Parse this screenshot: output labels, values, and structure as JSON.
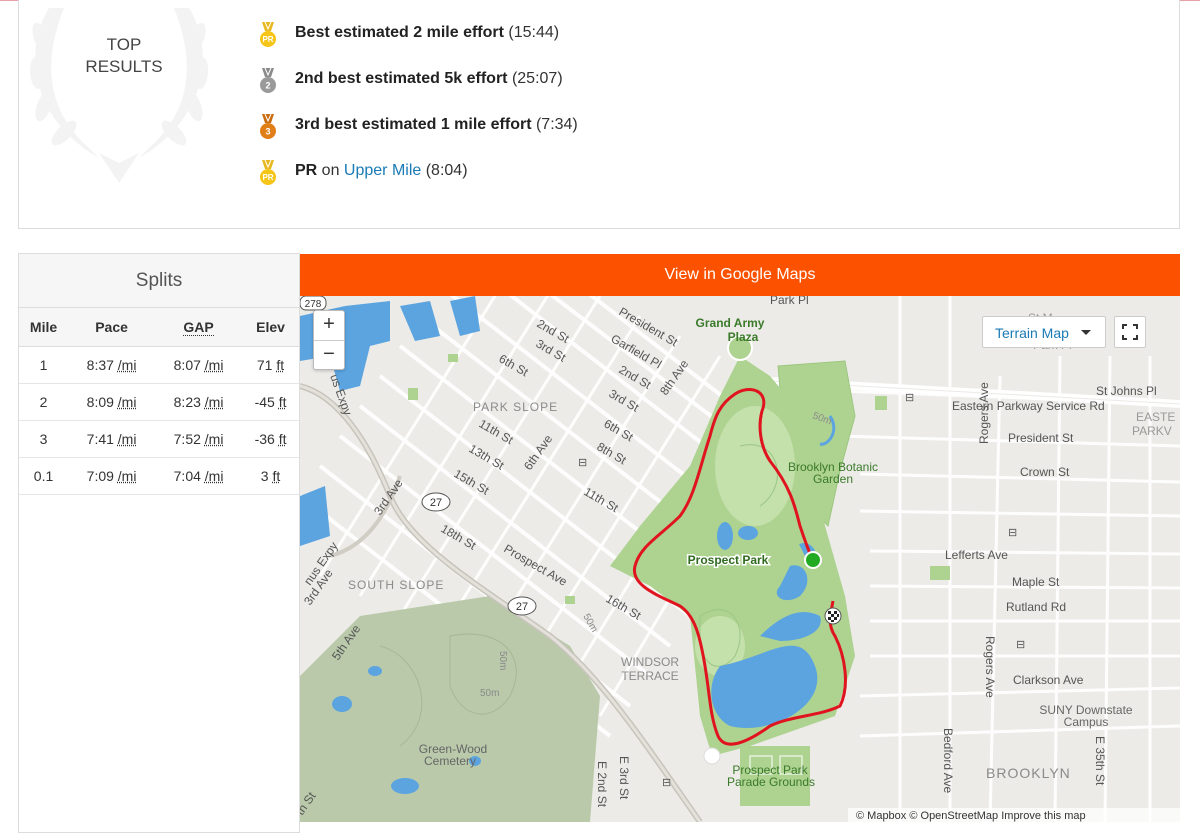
{
  "top_results": {
    "title_line1": "TOP",
    "title_line2": "RESULTS",
    "achievements": [
      {
        "medal": "pr-medal-icon",
        "medal_label": "PR",
        "bold": "Best estimated 2 mile effort",
        "rest": " (15:44)"
      },
      {
        "medal": "silver-medal-icon",
        "medal_label": "2",
        "bold": "2nd best estimated 5k effort",
        "rest": " (25:07)"
      },
      {
        "medal": "bronze-medal-icon",
        "medal_label": "3",
        "bold": "3rd best estimated 1 mile effort",
        "rest": " (7:34)"
      },
      {
        "medal": "pr-medal-icon",
        "medal_label": "PR",
        "bold": "PR",
        "mid": " on ",
        "link": "Upper Mile",
        "rest": " (8:04)"
      }
    ]
  },
  "splits": {
    "title": "Splits",
    "headers": [
      "Mile",
      "Pace",
      "GAP",
      "Elev"
    ],
    "rows": [
      {
        "mile": "1",
        "pace": "8:37",
        "gap": "8:07",
        "elev": "71"
      },
      {
        "mile": "2",
        "pace": "8:09",
        "gap": "8:23",
        "elev": "-45"
      },
      {
        "mile": "3",
        "pace": "7:41",
        "gap": "7:52",
        "elev": "-36"
      },
      {
        "mile": "0.1",
        "pace": "7:09",
        "gap": "7:04",
        "elev": "3"
      }
    ],
    "pace_unit": "/mi",
    "elev_unit": "ft"
  },
  "map": {
    "google_maps_label": "View in Google Maps",
    "zoom_in": "+",
    "zoom_out": "−",
    "terrain_label": "Terrain Map",
    "attribution": "© Mapbox © OpenStreetMap Improve this map",
    "labels": {
      "park": "Prospect Park",
      "plaza1": "Grand Army",
      "plaza2": "Plaza",
      "garden1": "Brooklyn Botanic",
      "garden2": "Garden",
      "park_slope": "PARK SLOPE",
      "south_slope": "SOUTH SLOPE",
      "windsor1": "WINDSOR",
      "windsor2": "TERRACE",
      "cemetery1": "Green-Wood",
      "cemetery2": "Cemetery",
      "parade1": "Prospect Park",
      "parade2": "Parade Grounds",
      "brooklyn": "BROOKLYN",
      "suny1": "SUNY Downstate",
      "suny2": "Campus",
      "eastern": "Eastern Parkway Service Rd",
      "eastern2": "EASTE",
      "eastern3": "PARKV",
      "st_johns": "St Johns Pl",
      "president_e": "President St",
      "crown": "Crown St",
      "lefferts": "Lefferts Ave",
      "maple": "Maple St",
      "rutland": "Rutland Rd",
      "clarkson": "Clarkson Ave",
      "rogers1": "Rogers Ave",
      "rogers2": "Rogers Ave",
      "bedford": "Bedford Ave",
      "e35": "E 35th St",
      "e3": "E 3rd St",
      "e2": "E 2nd St",
      "park_pl": "Park Pl",
      "park_pl2": "Park Pl",
      "st_m": "St M",
      "president_w": "President St",
      "garfield": "Garfield Pl",
      "second_st": "2nd St",
      "third_st": "3rd St",
      "third_st2": "3rd St",
      "second_st2": "2nd St",
      "sixth_st": "6th St",
      "sixth_st2": "6th St",
      "eighth_st": "8th St",
      "eighth_ave": "8th Ave",
      "eleventh_st": "11th St",
      "eleventh_st2": "11th St",
      "thirteenth": "13th St",
      "fifteenth": "15th St",
      "sixth_ave": "6th Ave",
      "third_ave": "3rd Ave",
      "third_ave2": "3rd Ave",
      "fifth_ave": "5th Ave",
      "eighteenth": "18th St",
      "prospect_ave": "Prospect Ave",
      "sixteenth": "16th St",
      "expy": "us Expy",
      "expy2": "nus Expy",
      "r278": "278",
      "r27a": "27",
      "r27b": "27",
      "fifty_m": "50m",
      "fifty_m2": "50m",
      "fifty_m3": "50m",
      "fifty_m4": "50m",
      "ath": "th St"
    }
  },
  "colors": {
    "strava_orange": "#fc5200",
    "route_red": "#e0141e",
    "link_blue": "#1a7ab6",
    "park_green": "#aed391",
    "water_blue": "#5ba4e0",
    "start_green": "#22aa22"
  }
}
